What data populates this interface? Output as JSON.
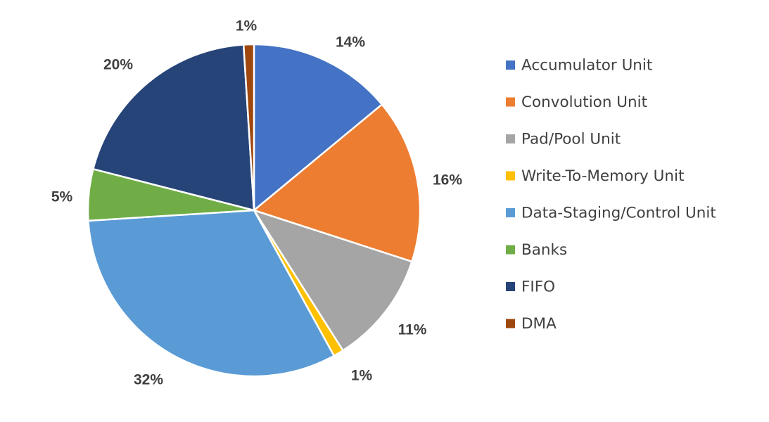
{
  "chart_data": {
    "type": "pie",
    "title": "",
    "slices": [
      {
        "label": "Accumulator Unit",
        "value": 14,
        "display": "14%",
        "color": "#4472C4"
      },
      {
        "label": "Convolution Unit",
        "value": 16,
        "display": "16%",
        "color": "#ED7D31"
      },
      {
        "label": "Pad/Pool Unit",
        "value": 11,
        "display": "11%",
        "color": "#A5A5A5"
      },
      {
        "label": "Write-To-Memory Unit",
        "value": 1,
        "display": "1%",
        "color": "#FFC000"
      },
      {
        "label": "Data-Staging/Control Unit",
        "value": 32,
        "display": "32%",
        "color": "#5B9BD5"
      },
      {
        "label": "Banks",
        "value": 5,
        "display": "5%",
        "color": "#70AD47"
      },
      {
        "label": "FIFO",
        "value": 20,
        "display": "20%",
        "color": "#264478"
      },
      {
        "label": "DMA",
        "value": 1,
        "display": "1%",
        "color": "#9E480E"
      }
    ],
    "start_angle": "12 o'clock",
    "direction": "clockwise",
    "legend_position": "right"
  }
}
